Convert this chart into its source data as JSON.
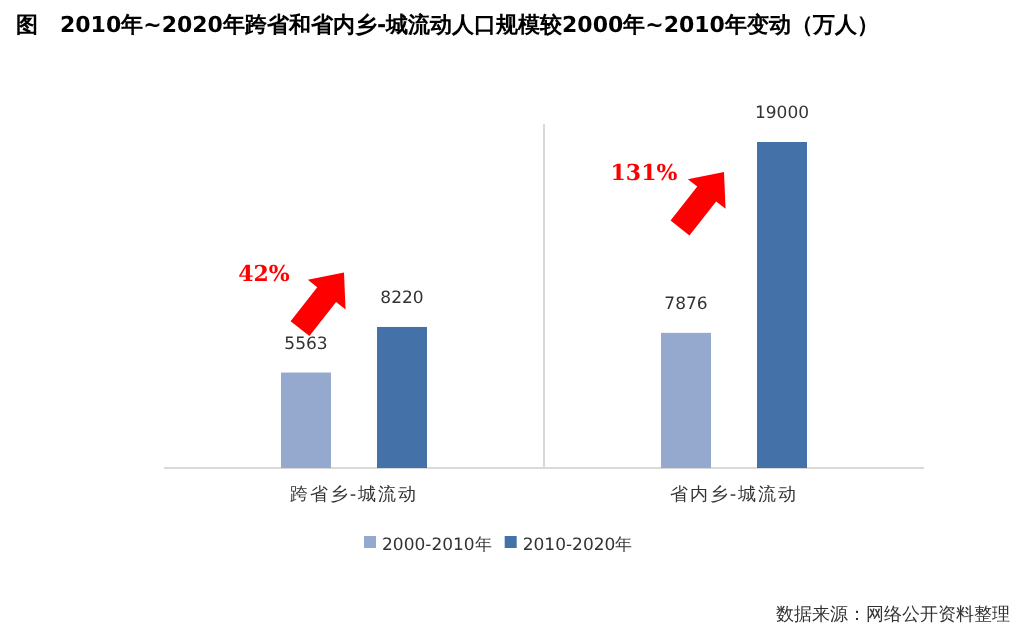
{
  "chart_data": {
    "type": "bar",
    "title": "图　2010年~2020年跨省和省内乡-城流动人口规模较2000年~2010年变动（万人）",
    "categories": [
      "跨省乡-城流动",
      "省内乡-城流动"
    ],
    "series": [
      {
        "name": "2000-2010年",
        "color": "#95a9cf",
        "values": [
          5563,
          7876
        ]
      },
      {
        "name": "2010-2020年",
        "color": "#4472a8",
        "values": [
          8220,
          19000
        ]
      }
    ],
    "data_labels": true,
    "legend": "bottom",
    "grid": "x",
    "annotations": [
      "42%",
      "131%",
      "数据来源：网络公开资料整理"
    ]
  }
}
